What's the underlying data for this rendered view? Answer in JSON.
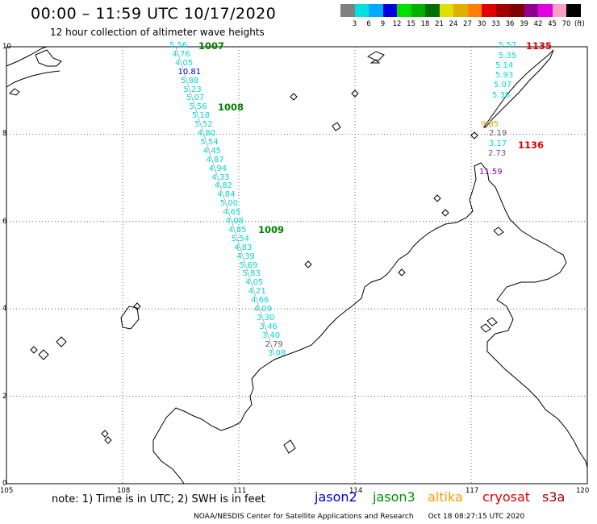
{
  "header": {
    "title": "00:00 – 11:59 UTC 10/17/2020",
    "subtitle": "12 hour collection of altimeter wave heights"
  },
  "scale": {
    "unit": "(ft)",
    "levels": [
      {
        "label": "3",
        "color": "#808080"
      },
      {
        "label": "6",
        "color": "#00e0e0"
      },
      {
        "label": "9",
        "color": "#00a8ff"
      },
      {
        "label": "12",
        "color": "#0000e0"
      },
      {
        "label": "15",
        "color": "#00e000"
      },
      {
        "label": "18",
        "color": "#00b000"
      },
      {
        "label": "21",
        "color": "#007000"
      },
      {
        "label": "24",
        "color": "#e0e000"
      },
      {
        "label": "27",
        "color": "#e0b000"
      },
      {
        "label": "30",
        "color": "#ff8000"
      },
      {
        "label": "33",
        "color": "#e00000"
      },
      {
        "label": "36",
        "color": "#a00000"
      },
      {
        "label": "39",
        "color": "#800000"
      },
      {
        "label": "42",
        "color": "#900090"
      },
      {
        "label": "45",
        "color": "#e000e0"
      },
      {
        "label": "70",
        "color": "#ff9ec8"
      },
      {
        "label": "",
        "color": "#000000"
      }
    ]
  },
  "map": {
    "lon_ticks": [
      "105",
      "108",
      "111",
      "114",
      "117",
      "120"
    ],
    "lat_ticks": [
      "0",
      "2",
      "4",
      "6",
      "8",
      "10"
    ],
    "lon_range": [
      105,
      120
    ],
    "lat_range": [
      0,
      10
    ]
  },
  "track_west": {
    "values": [
      "5.56",
      "4.76",
      "4.05",
      "10.81",
      "5.88",
      "5.23",
      "5.07",
      "5.56",
      "5.18",
      "5.52",
      "4.80",
      "5.54",
      "4.45",
      "4.87",
      "4.94",
      "4.33",
      "4.82",
      "4.84",
      "5.00",
      "4.65",
      "4.08",
      "4.85",
      "5.54",
      "4.83",
      "4.39",
      "5.69",
      "5.83",
      "4.05",
      "4.21",
      "4.66",
      "4.09",
      "3.30",
      "3.46",
      "3.40",
      "2.79",
      "3.08"
    ],
    "colors": [
      "cyan",
      "cyan",
      "cyan",
      "blue",
      "cyan",
      "cyan",
      "cyan",
      "cyan",
      "cyan",
      "cyan",
      "cyan",
      "cyan",
      "cyan",
      "cyan",
      "cyan",
      "cyan",
      "cyan",
      "cyan",
      "cyan",
      "cyan",
      "cyan",
      "cyan",
      "cyan",
      "cyan",
      "cyan",
      "cyan",
      "cyan",
      "cyan",
      "cyan",
      "cyan",
      "cyan",
      "cyan",
      "cyan",
      "cyan",
      "gray",
      "cyan"
    ],
    "pass_labels": [
      "1007",
      "1008",
      "1009"
    ]
  },
  "track_east": {
    "values": [
      "5.57",
      "5.35",
      "5.14",
      "5.93",
      "5.07",
      "5.38",
      "9.85",
      "2.19",
      "3.17",
      "2.73",
      "11.59"
    ],
    "colors": [
      "cyan",
      "cyan",
      "cyan",
      "cyan",
      "cyan",
      "cyan",
      "orange",
      "gray",
      "cyan",
      "gray",
      "purple"
    ],
    "pass_labels": [
      "1135",
      "1136"
    ]
  },
  "footer": {
    "note": "note: 1) Time is in UTC; 2) SWH is in feet",
    "satellites": [
      {
        "name": "jason2",
        "color": "#0000e0"
      },
      {
        "name": "jason3",
        "color": "#009000"
      },
      {
        "name": "altika",
        "color": "#ff9900"
      },
      {
        "name": "cryosat",
        "color": "#e00000"
      },
      {
        "name": "s3a",
        "color": "#a00000"
      }
    ],
    "credit": "NOAA/NESDIS Center for Satellite Applications and Research",
    "timestamp": "Oct 18 08:27:15 UTC 2020"
  }
}
